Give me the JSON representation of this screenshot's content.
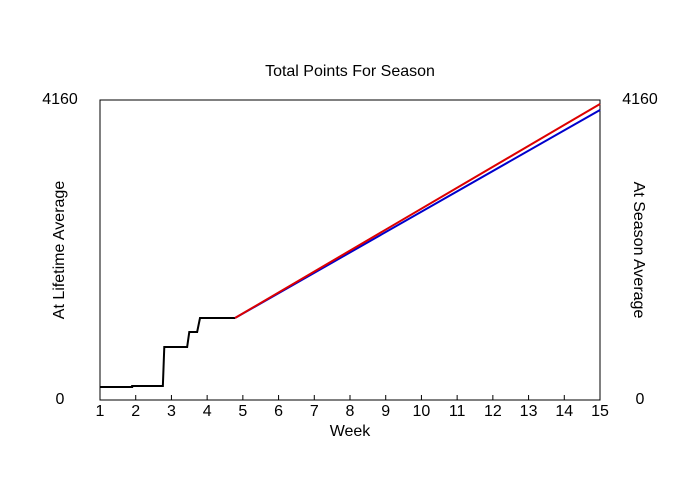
{
  "chart_data": {
    "type": "line",
    "title": "Total Points For Season",
    "xlabel": "Week",
    "ylabel": "At Lifetime Average",
    "ylabel_color": "#0000cc",
    "y2label": "At Season Average",
    "y2label_color": "#dd0000",
    "xlim": [
      1,
      15
    ],
    "xticks": [
      1,
      2,
      3,
      4,
      5,
      6,
      7,
      8,
      9,
      10,
      11,
      12,
      13,
      14,
      15
    ],
    "ylim": [
      0,
      4160
    ],
    "yticks": [
      0,
      4160
    ],
    "y2lim": [
      0,
      4160
    ],
    "y2ticks": [
      0,
      4160
    ],
    "grid": false,
    "series": [
      {
        "color": "#000000",
        "x": [
          1,
          1.9,
          1.9,
          2.76,
          2.8,
          3.44,
          3.5,
          3.72,
          3.8,
          4.78
        ],
        "values": [
          180,
          180,
          195,
          195,
          735,
          735,
          943,
          943,
          1137,
          1137
        ]
      },
      {
        "color": "#0000cc",
        "x": [
          4.78,
          15
        ],
        "values": [
          1137,
          4022
        ]
      },
      {
        "color": "#dd0000",
        "axis": "y2",
        "x": [
          4.78,
          15
        ],
        "values": [
          1137,
          4105
        ]
      }
    ]
  }
}
